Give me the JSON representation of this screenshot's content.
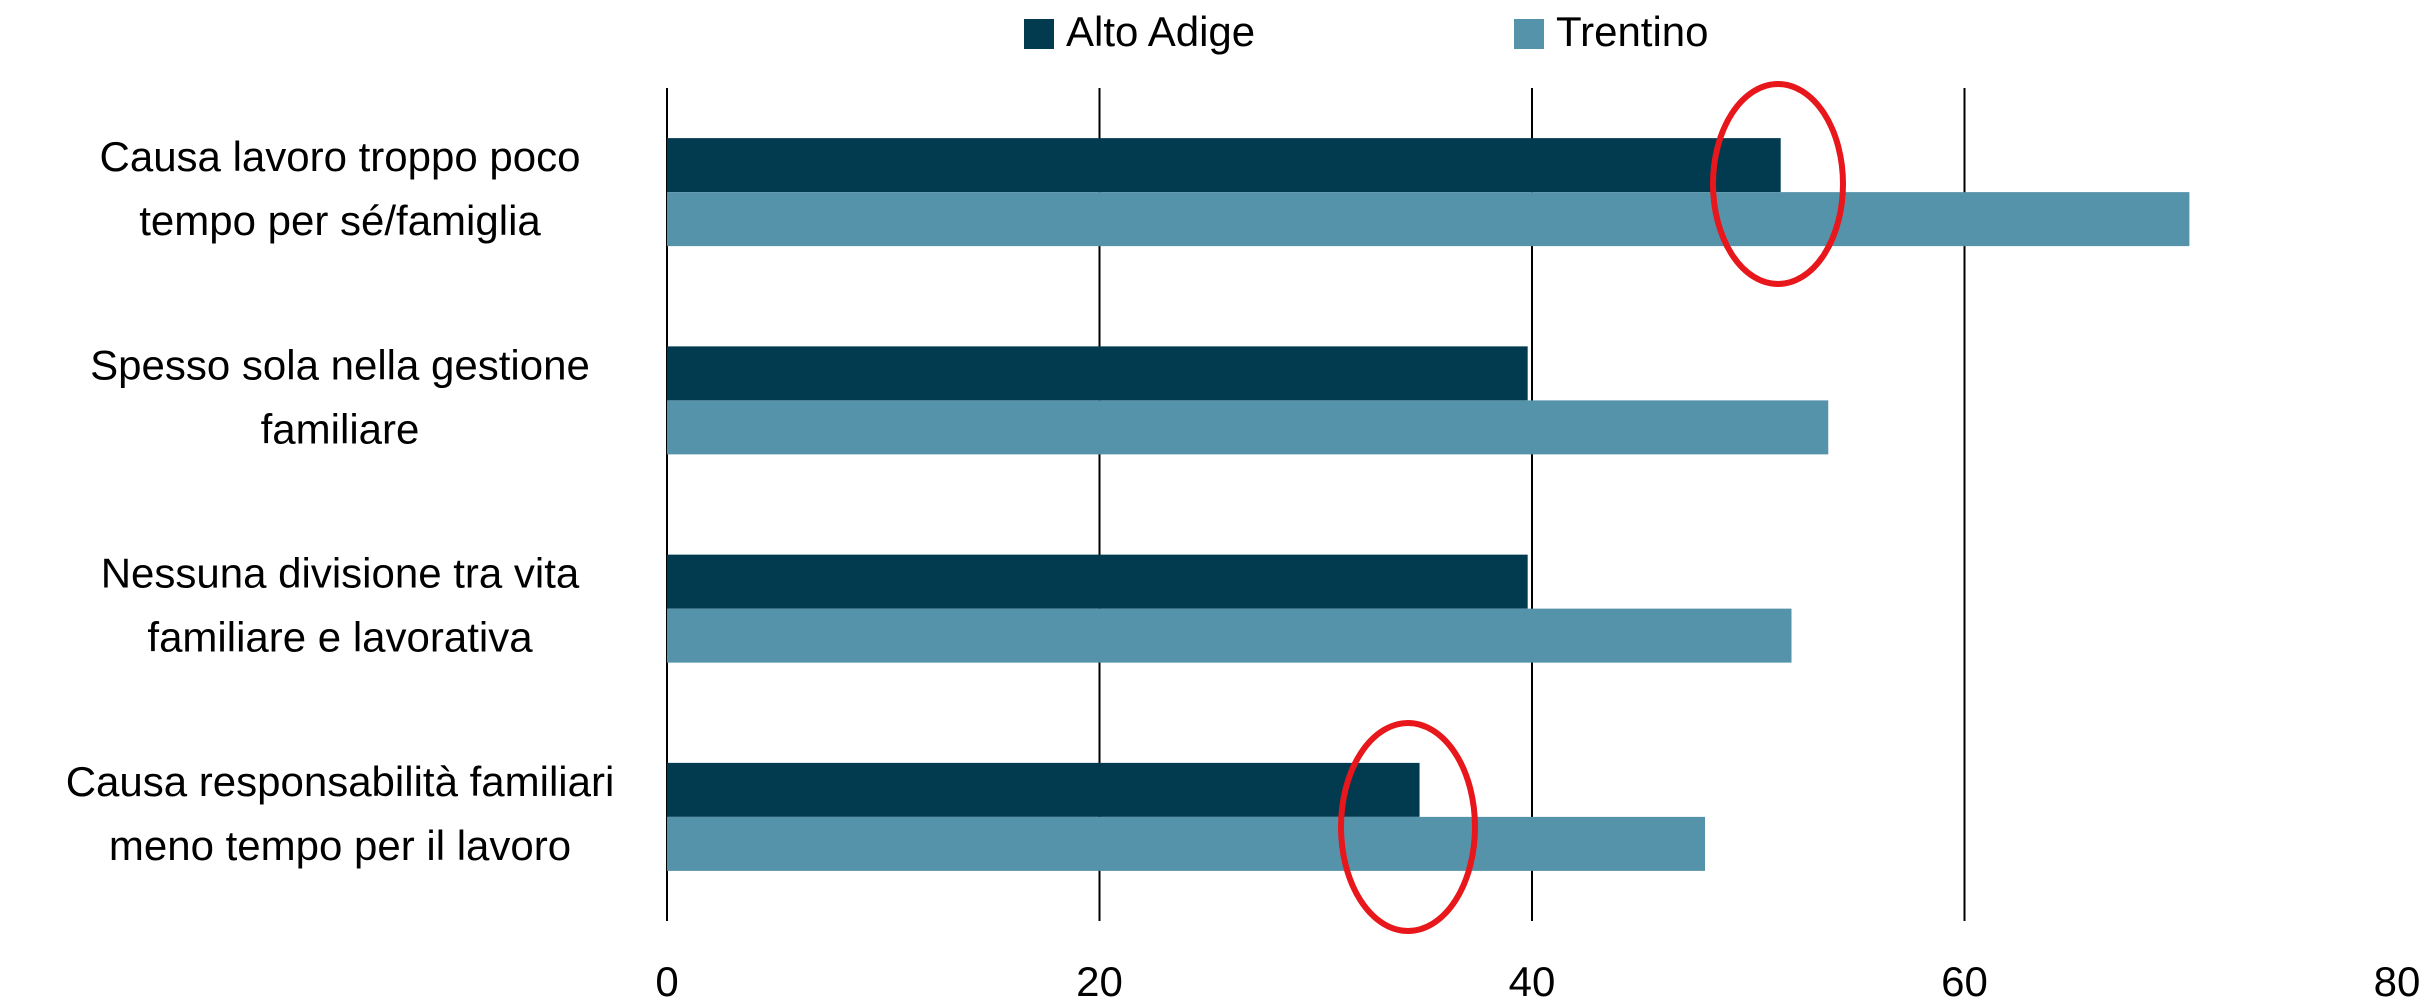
{
  "chart_data": {
    "type": "bar",
    "orientation": "horizontal",
    "categories": [
      "Causa lavoro troppo poco tempo per sé/famiglia",
      "Spesso sola nella gestione familiare",
      "Nessuna divisione tra vita familiare e lavorativa",
      "Causa responsabilità familiari meno tempo per il lavoro"
    ],
    "series": [
      {
        "name": "Alto Adige",
        "color": "#023b50",
        "values": [
          51.5,
          39.8,
          39.8,
          34.8
        ]
      },
      {
        "name": "Trentino",
        "color": "#5593aa",
        "values": [
          70.4,
          53.7,
          52.0,
          48.0
        ]
      }
    ],
    "xlim": [
      0,
      80
    ],
    "xticks": [
      0,
      20,
      40,
      60,
      80
    ],
    "grid": true,
    "legend": "top"
  }
}
